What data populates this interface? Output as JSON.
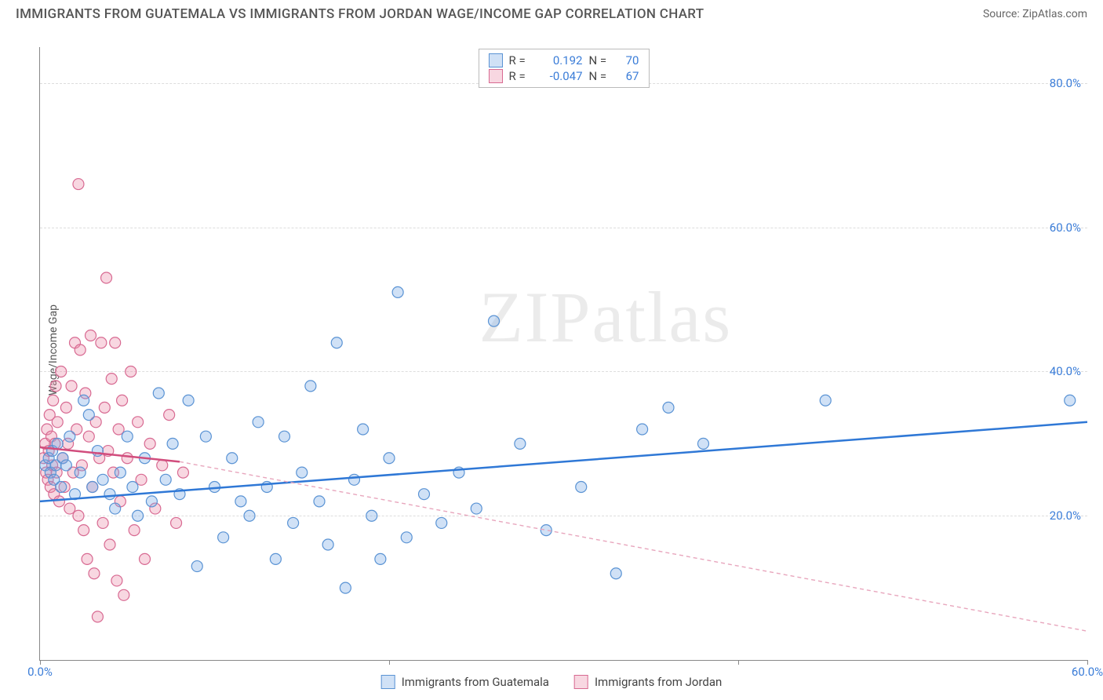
{
  "title": "IMMIGRANTS FROM GUATEMALA VS IMMIGRANTS FROM JORDAN WAGE/INCOME GAP CORRELATION CHART",
  "source": "Source: ZipAtlas.com",
  "ylabel": "Wage/Income Gap",
  "watermark": "ZIPatlas",
  "chart": {
    "type": "scatter",
    "xlim": [
      0,
      60
    ],
    "ylim": [
      0,
      85
    ],
    "xticks": [
      0,
      20,
      40,
      60
    ],
    "xtick_labels": [
      "0.0%",
      "",
      "",
      "60.0%"
    ],
    "yticks": [
      20,
      40,
      60,
      80
    ],
    "ytick_labels": [
      "20.0%",
      "40.0%",
      "60.0%",
      "80.0%"
    ],
    "grid_color": "#dddddd",
    "background_color": "#ffffff",
    "marker_radius": 7,
    "marker_stroke_width": 1.2,
    "series": [
      {
        "name": "Immigrants from Guatemala",
        "color_fill": "rgba(120,170,230,0.35)",
        "color_stroke": "#5a93d4",
        "r_value": "0.192",
        "n_value": "70",
        "regression": {
          "x1": 0,
          "y1": 22,
          "x2": 60,
          "y2": 33,
          "stroke": "#2f78d6",
          "width": 2.5,
          "dash": ""
        },
        "points": [
          [
            0.3,
            27
          ],
          [
            0.5,
            28
          ],
          [
            0.6,
            26
          ],
          [
            0.7,
            29
          ],
          [
            0.8,
            25
          ],
          [
            0.9,
            27
          ],
          [
            1.0,
            30
          ],
          [
            1.2,
            24
          ],
          [
            1.3,
            28
          ],
          [
            1.5,
            27
          ],
          [
            1.7,
            31
          ],
          [
            2.0,
            23
          ],
          [
            2.3,
            26
          ],
          [
            2.5,
            36
          ],
          [
            2.8,
            34
          ],
          [
            3.0,
            24
          ],
          [
            3.3,
            29
          ],
          [
            3.6,
            25
          ],
          [
            4.0,
            23
          ],
          [
            4.3,
            21
          ],
          [
            4.6,
            26
          ],
          [
            5.0,
            31
          ],
          [
            5.3,
            24
          ],
          [
            5.6,
            20
          ],
          [
            6.0,
            28
          ],
          [
            6.4,
            22
          ],
          [
            6.8,
            37
          ],
          [
            7.2,
            25
          ],
          [
            7.6,
            30
          ],
          [
            8.0,
            23
          ],
          [
            8.5,
            36
          ],
          [
            9.0,
            13
          ],
          [
            9.5,
            31
          ],
          [
            10.0,
            24
          ],
          [
            10.5,
            17
          ],
          [
            11.0,
            28
          ],
          [
            11.5,
            22
          ],
          [
            12.0,
            20
          ],
          [
            12.5,
            33
          ],
          [
            13.0,
            24
          ],
          [
            13.5,
            14
          ],
          [
            14.0,
            31
          ],
          [
            14.5,
            19
          ],
          [
            15.0,
            26
          ],
          [
            15.5,
            38
          ],
          [
            16.0,
            22
          ],
          [
            16.5,
            16
          ],
          [
            17.0,
            44
          ],
          [
            17.5,
            10
          ],
          [
            18.0,
            25
          ],
          [
            18.5,
            32
          ],
          [
            19.0,
            20
          ],
          [
            19.5,
            14
          ],
          [
            20.0,
            28
          ],
          [
            20.5,
            51
          ],
          [
            21.0,
            17
          ],
          [
            22.0,
            23
          ],
          [
            23.0,
            19
          ],
          [
            24.0,
            26
          ],
          [
            25.0,
            21
          ],
          [
            26.0,
            47
          ],
          [
            27.5,
            30
          ],
          [
            29.0,
            18
          ],
          [
            31.0,
            24
          ],
          [
            33.0,
            12
          ],
          [
            34.5,
            32
          ],
          [
            36.0,
            35
          ],
          [
            38.0,
            30
          ],
          [
            45.0,
            36
          ],
          [
            59.0,
            36
          ]
        ]
      },
      {
        "name": "Immigrants from Jordan",
        "color_fill": "rgba(235,140,170,0.35)",
        "color_stroke": "#d86a92",
        "r_value": "-0.047",
        "n_value": "67",
        "regression_solid": {
          "x1": 0,
          "y1": 29.5,
          "x2": 8,
          "y2": 27.5,
          "stroke": "#d14d7d",
          "width": 2.5
        },
        "regression_dash": {
          "x1": 8,
          "y1": 27.5,
          "x2": 60,
          "y2": 4,
          "stroke": "#e8a6bd",
          "width": 1.4,
          "dash": "5,4"
        },
        "points": [
          [
            0.2,
            28
          ],
          [
            0.3,
            30
          ],
          [
            0.35,
            26
          ],
          [
            0.4,
            32
          ],
          [
            0.45,
            25
          ],
          [
            0.5,
            29
          ],
          [
            0.55,
            34
          ],
          [
            0.6,
            24
          ],
          [
            0.65,
            31
          ],
          [
            0.7,
            27
          ],
          [
            0.75,
            36
          ],
          [
            0.8,
            23
          ],
          [
            0.85,
            30
          ],
          [
            0.9,
            38
          ],
          [
            0.95,
            26
          ],
          [
            1.0,
            33
          ],
          [
            1.1,
            22
          ],
          [
            1.2,
            40
          ],
          [
            1.3,
            28
          ],
          [
            1.4,
            24
          ],
          [
            1.5,
            35
          ],
          [
            1.6,
            30
          ],
          [
            1.7,
            21
          ],
          [
            1.8,
            38
          ],
          [
            1.9,
            26
          ],
          [
            2.0,
            44
          ],
          [
            2.1,
            32
          ],
          [
            2.2,
            20
          ],
          [
            2.3,
            43
          ],
          [
            2.4,
            27
          ],
          [
            2.5,
            18
          ],
          [
            2.6,
            37
          ],
          [
            2.7,
            14
          ],
          [
            2.8,
            31
          ],
          [
            2.9,
            45
          ],
          [
            3.0,
            24
          ],
          [
            3.1,
            12
          ],
          [
            3.2,
            33
          ],
          [
            3.3,
            6
          ],
          [
            3.4,
            28
          ],
          [
            3.5,
            44
          ],
          [
            3.6,
            19
          ],
          [
            3.7,
            35
          ],
          [
            3.8,
            53
          ],
          [
            3.9,
            29
          ],
          [
            4.0,
            16
          ],
          [
            4.1,
            39
          ],
          [
            4.2,
            26
          ],
          [
            4.3,
            44
          ],
          [
            4.4,
            11
          ],
          [
            4.5,
            32
          ],
          [
            4.6,
            22
          ],
          [
            4.7,
            36
          ],
          [
            4.8,
            9
          ],
          [
            5.0,
            28
          ],
          [
            5.2,
            40
          ],
          [
            5.4,
            18
          ],
          [
            5.6,
            33
          ],
          [
            5.8,
            25
          ],
          [
            6.0,
            14
          ],
          [
            6.3,
            30
          ],
          [
            6.6,
            21
          ],
          [
            7.0,
            27
          ],
          [
            7.4,
            34
          ],
          [
            7.8,
            19
          ],
          [
            8.2,
            26
          ],
          [
            2.2,
            66
          ]
        ]
      }
    ]
  },
  "stats_labels": {
    "r": "R =",
    "n": "N ="
  },
  "legend": {
    "series1": "Immigrants from Guatemala",
    "series2": "Immigrants from Jordan"
  }
}
